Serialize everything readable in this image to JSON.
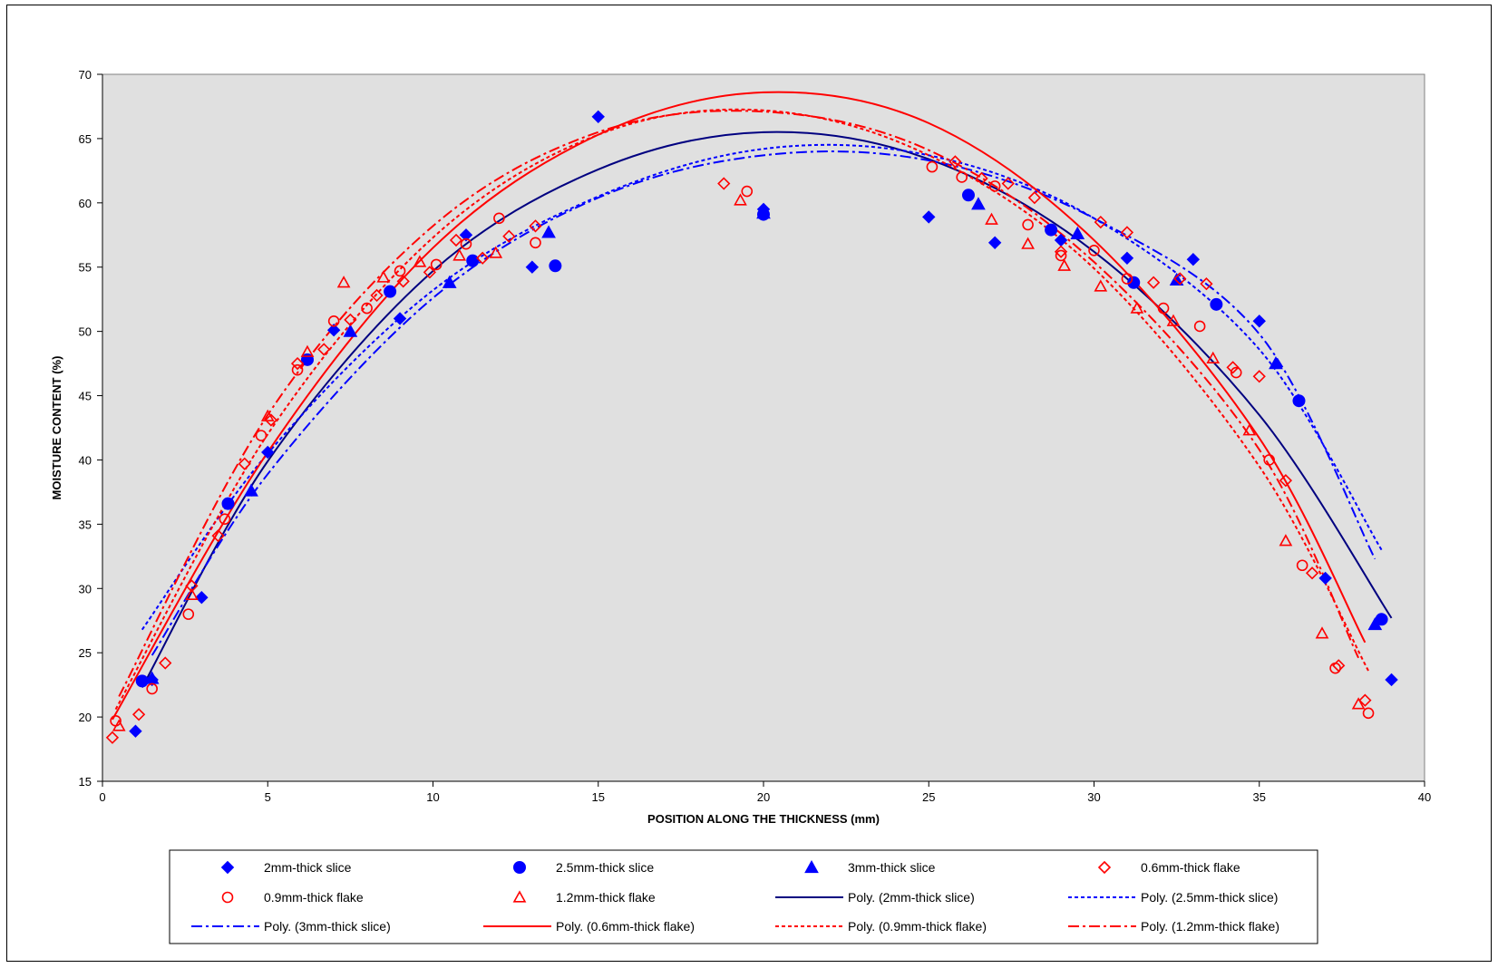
{
  "chart_data": {
    "type": "scatter",
    "title": "",
    "xlabel": "POSITION ALONG THE THICKNESS (mm)",
    "ylabel": "MOISTURE CONTENT (%)",
    "xlim": [
      0,
      40
    ],
    "ylim": [
      15,
      70
    ],
    "xticks": [
      0,
      5,
      10,
      15,
      20,
      25,
      30,
      35,
      40
    ],
    "yticks": [
      15,
      20,
      25,
      30,
      35,
      40,
      45,
      50,
      55,
      60,
      65,
      70
    ],
    "grid": false,
    "plot_background": "#e0e0e0",
    "legend_position": "bottom",
    "series": [
      {
        "name": "2mm-thick slice",
        "marker": "diamond-filled",
        "color": "#0000ff",
        "points": [
          [
            1,
            18.9
          ],
          [
            1.5,
            22.9
          ],
          [
            3,
            29.3
          ],
          [
            5,
            40.6
          ],
          [
            7,
            50.1
          ],
          [
            9,
            51
          ],
          [
            11,
            57.5
          ],
          [
            13,
            55
          ],
          [
            15,
            66.7
          ],
          [
            20,
            59.5
          ],
          [
            25,
            58.9
          ],
          [
            27,
            56.9
          ],
          [
            29,
            57.1
          ],
          [
            31,
            55.7
          ],
          [
            33,
            55.6
          ],
          [
            35,
            50.8
          ],
          [
            37,
            30.8
          ],
          [
            39,
            22.9
          ]
        ]
      },
      {
        "name": "2.5mm-thick slice",
        "marker": "circle-filled",
        "color": "#0000ff",
        "points": [
          [
            1.2,
            22.8
          ],
          [
            3.8,
            36.6
          ],
          [
            6.2,
            47.8
          ],
          [
            8.7,
            53.1
          ],
          [
            11.2,
            55.5
          ],
          [
            13.7,
            55.1
          ],
          [
            20,
            59.1
          ],
          [
            26.2,
            60.6
          ],
          [
            28.7,
            57.9
          ],
          [
            31.2,
            53.8
          ],
          [
            33.7,
            52.1
          ],
          [
            36.2,
            44.6
          ],
          [
            38.7,
            27.6
          ]
        ]
      },
      {
        "name": "3mm-thick slice",
        "marker": "triangle-filled",
        "color": "#0000ff",
        "points": [
          [
            1.5,
            23
          ],
          [
            4.5,
            37.6
          ],
          [
            7.5,
            50
          ],
          [
            10.5,
            53.8
          ],
          [
            13.5,
            57.7
          ],
          [
            20,
            59.2
          ],
          [
            26.5,
            59.9
          ],
          [
            29.5,
            57.6
          ],
          [
            32.5,
            54
          ],
          [
            35.5,
            47.5
          ],
          [
            38.5,
            27.2
          ]
        ]
      },
      {
        "name": "0.6mm-thick flake",
        "marker": "diamond-open",
        "color": "#ff0000",
        "points": [
          [
            0.3,
            18.4
          ],
          [
            1.1,
            20.2
          ],
          [
            1.9,
            24.2
          ],
          [
            2.7,
            30.2
          ],
          [
            3.5,
            34.1
          ],
          [
            4.3,
            39.7
          ],
          [
            5.1,
            43.1
          ],
          [
            5.9,
            47.5
          ],
          [
            6.7,
            48.6
          ],
          [
            7.5,
            50.9
          ],
          [
            8.3,
            52.8
          ],
          [
            9.1,
            53.9
          ],
          [
            9.9,
            54.6
          ],
          [
            10.7,
            57.1
          ],
          [
            11.5,
            55.7
          ],
          [
            12.3,
            57.4
          ],
          [
            13.1,
            58.2
          ],
          [
            18.8,
            61.5
          ],
          [
            25.8,
            63.2
          ],
          [
            26.6,
            61.9
          ],
          [
            27.4,
            61.5
          ],
          [
            28.2,
            60.4
          ],
          [
            29,
            56.2
          ],
          [
            30.2,
            58.5
          ],
          [
            31,
            57.7
          ],
          [
            31.8,
            53.8
          ],
          [
            32.6,
            54.1
          ],
          [
            33.4,
            53.7
          ],
          [
            34.2,
            47.2
          ],
          [
            35,
            46.5
          ],
          [
            35.8,
            38.4
          ],
          [
            36.6,
            31.2
          ],
          [
            37.4,
            24
          ],
          [
            38.2,
            21.3
          ]
        ]
      },
      {
        "name": "0.9mm-thick flake",
        "marker": "circle-open",
        "color": "#ff0000",
        "points": [
          [
            0.4,
            19.7
          ],
          [
            1.5,
            22.2
          ],
          [
            2.6,
            28
          ],
          [
            3.7,
            35.4
          ],
          [
            4.8,
            41.9
          ],
          [
            5.9,
            47
          ],
          [
            7,
            50.8
          ],
          [
            8,
            51.8
          ],
          [
            9,
            54.7
          ],
          [
            10.1,
            55.2
          ],
          [
            11,
            56.8
          ],
          [
            12,
            58.8
          ],
          [
            13.1,
            56.9
          ],
          [
            19.5,
            60.9
          ],
          [
            25.1,
            62.8
          ],
          [
            26,
            62
          ],
          [
            27,
            61.3
          ],
          [
            28,
            58.3
          ],
          [
            29,
            55.9
          ],
          [
            30,
            56.3
          ],
          [
            31,
            54.1
          ],
          [
            32.1,
            51.8
          ],
          [
            33.2,
            50.4
          ],
          [
            34.3,
            46.8
          ],
          [
            35.3,
            40
          ],
          [
            36.3,
            31.8
          ],
          [
            37.3,
            23.8
          ],
          [
            38.3,
            20.3
          ]
        ]
      },
      {
        "name": "1.2mm-thick flake",
        "marker": "triangle-open",
        "color": "#ff0000",
        "points": [
          [
            0.5,
            19.3
          ],
          [
            2.7,
            29.5
          ],
          [
            5,
            43.4
          ],
          [
            6.2,
            48.4
          ],
          [
            7.3,
            53.8
          ],
          [
            8.5,
            54.2
          ],
          [
            9.6,
            55.4
          ],
          [
            10.8,
            55.9
          ],
          [
            11.9,
            56.1
          ],
          [
            19.3,
            60.2
          ],
          [
            26.9,
            58.7
          ],
          [
            28,
            56.8
          ],
          [
            29.1,
            55.1
          ],
          [
            30.2,
            53.5
          ],
          [
            31.3,
            51.8
          ],
          [
            32.4,
            50.8
          ],
          [
            33.6,
            47.9
          ],
          [
            34.7,
            42.3
          ],
          [
            35.8,
            33.7
          ],
          [
            36.9,
            26.5
          ],
          [
            38,
            21
          ]
        ]
      }
    ],
    "trendlines": [
      {
        "name": "Poly. (2mm-thick slice)",
        "color": "#000080",
        "dash": "solid",
        "x": [
          1.2,
          5,
          10,
          15,
          20,
          25,
          30,
          35,
          39
        ],
        "y": [
          22.3,
          39.9,
          54.7,
          62.6,
          65.5,
          63.4,
          56.2,
          43.5,
          27.7
        ]
      },
      {
        "name": "Poly. (2.5mm-thick slice)",
        "color": "#0000ff",
        "dash": "dot",
        "x": [
          1.2,
          5,
          10,
          15,
          20,
          25,
          30,
          35,
          38.7
        ],
        "y": [
          26.8,
          40.5,
          53.2,
          60.5,
          64.2,
          63.7,
          58.8,
          48.6,
          33
        ]
      },
      {
        "name": "Poly. (3mm-thick slice)",
        "color": "#0000ff",
        "dash": "dashdot",
        "x": [
          1.5,
          5,
          10,
          15,
          20,
          25,
          30,
          35,
          38.5
        ],
        "y": [
          24.8,
          38.9,
          52.6,
          60.4,
          63.7,
          63.3,
          58.8,
          49.8,
          32.3
        ]
      },
      {
        "name": "Poly. (0.6mm-thick flake)",
        "color": "#ff0000",
        "dash": "solid",
        "x": [
          0.3,
          5,
          10,
          15,
          20,
          25,
          30,
          35,
          38.2
        ],
        "y": [
          19.8,
          40.6,
          56.5,
          65.3,
          68.6,
          66.2,
          57.1,
          41.7,
          25.8
        ]
      },
      {
        "name": "Poly. (0.9mm-thick flake)",
        "color": "#ff0000",
        "dash": "dot",
        "x": [
          0.4,
          5,
          10,
          15,
          20,
          25,
          30,
          35,
          38.3
        ],
        "y": [
          20.6,
          42,
          57.3,
          65.3,
          67.2,
          63.7,
          54.9,
          39.5,
          23.6
        ]
      },
      {
        "name": "Poly. (1.2mm-thick flake)",
        "color": "#ff0000",
        "dash": "dashdot",
        "x": [
          0.5,
          5,
          10,
          15,
          20,
          25,
          30,
          35,
          38
        ],
        "y": [
          21.6,
          43.5,
          58.2,
          65.5,
          67.1,
          64.1,
          55.4,
          40.8,
          24.6
        ]
      }
    ]
  }
}
